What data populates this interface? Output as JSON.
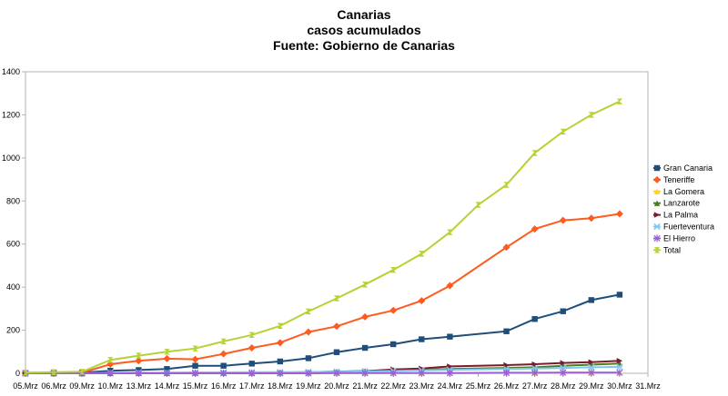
{
  "chart_data": {
    "type": "line",
    "title": [
      "Canarias",
      "casos acumulados",
      "Fuente: Gobierno de Canarias"
    ],
    "xlabel": "",
    "ylabel": "",
    "ylim": [
      0,
      1400
    ],
    "yticks": [
      0,
      200,
      400,
      600,
      800,
      1000,
      1200,
      1400
    ],
    "grid": false,
    "legend": "right",
    "categories": [
      "05.Mrz",
      "06.Mrz",
      "09.Mrz",
      "10.Mrz",
      "13.Mrz",
      "14.Mrz",
      "15.Mrz",
      "16.Mrz",
      "17.Mrz",
      "18.Mrz",
      "19.Mrz",
      "20.Mrz",
      "21.Mrz",
      "22.Mrz",
      "23.Mrz",
      "24.Mrz",
      "25.Mrz",
      "26.Mrz",
      "27.Mrz",
      "28.Mrz",
      "29.Mrz",
      "30.Mrz",
      "31.Mrz"
    ],
    "series": [
      {
        "name": "Gran Canaria",
        "color": "#1f4e79",
        "marker": "square",
        "values": [
          2,
          3,
          3,
          12,
          15,
          20,
          35,
          35,
          45,
          55,
          70,
          98,
          118,
          135,
          158,
          170,
          null,
          195,
          252,
          288,
          340,
          365,
          null
        ]
      },
      {
        "name": "Teneriffe",
        "color": "#ff5a1f",
        "marker": "diamond",
        "values": [
          2,
          3,
          3,
          42,
          58,
          68,
          65,
          90,
          118,
          142,
          192,
          218,
          262,
          292,
          337,
          407,
          null,
          585,
          670,
          710,
          720,
          740,
          null
        ]
      },
      {
        "name": "La Gomera",
        "color": "#ffd21f",
        "marker": "triangle",
        "values": [
          0,
          0,
          0,
          1,
          1,
          1,
          1,
          1,
          1,
          1,
          1,
          1,
          1,
          2,
          2,
          2,
          null,
          3,
          3,
          3,
          3,
          3,
          null
        ]
      },
      {
        "name": "Lanzarote",
        "color": "#4d7c1f",
        "marker": "triangle",
        "values": [
          0,
          0,
          0,
          1,
          2,
          2,
          3,
          3,
          3,
          4,
          5,
          8,
          10,
          15,
          17,
          20,
          null,
          25,
          28,
          35,
          40,
          45,
          null
        ]
      },
      {
        "name": "La Palma",
        "color": "#7b1c2e",
        "marker": "arrow",
        "values": [
          0,
          0,
          0,
          1,
          1,
          1,
          2,
          2,
          3,
          3,
          5,
          7,
          10,
          18,
          22,
          32,
          null,
          38,
          42,
          48,
          52,
          58,
          null
        ]
      },
      {
        "name": "Fuerteventura",
        "color": "#7ec8f0",
        "marker": "x",
        "values": [
          0,
          0,
          0,
          2,
          3,
          3,
          4,
          4,
          5,
          5,
          6,
          7,
          9,
          11,
          14,
          16,
          null,
          20,
          22,
          25,
          28,
          30,
          null
        ]
      },
      {
        "name": "El Hierro",
        "color": "#9b5fd6",
        "marker": "star",
        "values": [
          0,
          0,
          0,
          0,
          0,
          0,
          0,
          0,
          0,
          0,
          0,
          1,
          1,
          1,
          1,
          1,
          null,
          2,
          2,
          3,
          3,
          3,
          null
        ]
      },
      {
        "name": "Total",
        "color": "#b5d334",
        "marker": "hourglass",
        "values": [
          3,
          5,
          7,
          62,
          82,
          100,
          115,
          148,
          178,
          220,
          287,
          348,
          412,
          480,
          555,
          655,
          782,
          875,
          1023,
          1122,
          1200,
          1262,
          null
        ]
      }
    ]
  }
}
